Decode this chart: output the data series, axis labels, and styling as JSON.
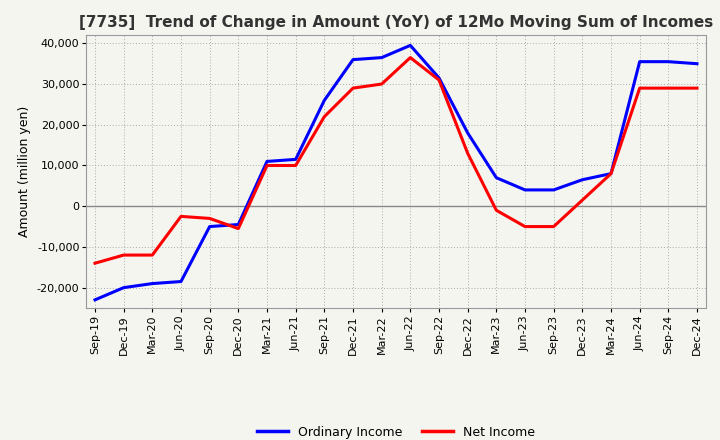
{
  "title": "[7735]  Trend of Change in Amount (YoY) of 12Mo Moving Sum of Incomes",
  "ylabel": "Amount (million yen)",
  "x_labels": [
    "Sep-19",
    "Dec-19",
    "Mar-20",
    "Jun-20",
    "Sep-20",
    "Dec-20",
    "Mar-21",
    "Jun-21",
    "Sep-21",
    "Dec-21",
    "Mar-22",
    "Jun-22",
    "Sep-22",
    "Dec-22",
    "Mar-23",
    "Jun-23",
    "Sep-23",
    "Dec-23",
    "Mar-24",
    "Jun-24",
    "Sep-24",
    "Dec-24"
  ],
  "ordinary_income": [
    -23000,
    -20000,
    -19000,
    -18500,
    -5000,
    -4500,
    11000,
    11500,
    26000,
    36000,
    36500,
    39500,
    31500,
    18000,
    7000,
    4000,
    4000,
    6500,
    8000,
    35500,
    35500,
    35000
  ],
  "net_income": [
    -14000,
    -12000,
    -12000,
    -2500,
    -3000,
    -5500,
    10000,
    10000,
    22000,
    29000,
    30000,
    36500,
    31000,
    13000,
    -1000,
    -5000,
    -5000,
    1500,
    8000,
    29000,
    29000,
    29000
  ],
  "ordinary_income_color": "#0000FF",
  "net_income_color": "#FF0000",
  "ylim": [
    -25000,
    42000
  ],
  "yticks": [
    -20000,
    -10000,
    0,
    10000,
    20000,
    30000,
    40000
  ],
  "bg_color": "#F5F5F0",
  "plot_bg_color": "#F5F5F0",
  "grid_color": "#AAAAAA",
  "zero_line_color": "#888888",
  "line_width": 2.2,
  "title_fontsize": 11,
  "tick_fontsize": 8,
  "ylabel_fontsize": 9
}
